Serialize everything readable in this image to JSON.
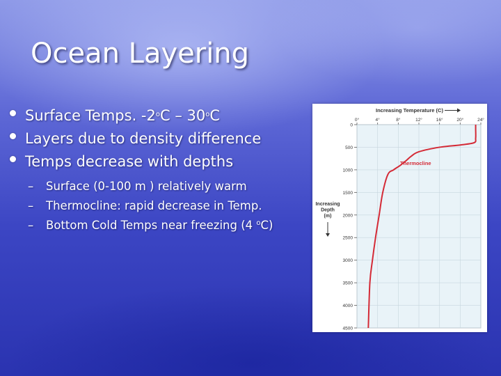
{
  "slide": {
    "title": "Ocean Layering",
    "bullets": [
      {
        "pre": "Surface Temps. -2",
        "sup1": "o",
        "mid": "C – 30",
        "sup2": "o",
        "post": "C"
      },
      {
        "text": "Layers due to density difference"
      },
      {
        "text": "Temps decrease with depths"
      }
    ],
    "subbullets": [
      {
        "dash": "–",
        "text": "Surface (0-100 m ) relatively warm"
      },
      {
        "dash": "–",
        "text": "Thermocline: rapid decrease in Temp."
      },
      {
        "dash": "–",
        "pre": "Bottom Cold Temps near freezing (4 ",
        "sup": "o",
        "post": "C)"
      }
    ]
  },
  "chart_data": {
    "type": "line",
    "title": "Increasing Temperature (C)",
    "ylabel_lines": [
      "Increasing",
      "Depth",
      "(m)"
    ],
    "annotation": "Thermocline",
    "x_ticks": [
      "0°",
      "4°",
      "8°",
      "12°",
      "16°",
      "20°",
      "24°"
    ],
    "x_tick_values": [
      0,
      4,
      8,
      12,
      16,
      20,
      24
    ],
    "y_ticks": [
      "0",
      "500",
      "1000",
      "1500",
      "2000",
      "2500",
      "3000",
      "3500",
      "4000",
      "4500"
    ],
    "y_tick_values": [
      0,
      500,
      1000,
      1500,
      2000,
      2500,
      3000,
      3500,
      4000,
      4500
    ],
    "xlim": [
      0,
      24
    ],
    "ylim": [
      0,
      4500
    ],
    "line_color": "#d42a36",
    "x": [
      23,
      23,
      23,
      22.7,
      20,
      16,
      12,
      10.5,
      9.5,
      8.4,
      7.1,
      6,
      5,
      4.3,
      3.6,
      3.0,
      2.5,
      2.2
    ],
    "y": [
      0,
      100,
      300,
      400,
      450,
      500,
      600,
      700,
      800,
      900,
      1000,
      1100,
      1500,
      2000,
      2500,
      3000,
      3500,
      4500
    ]
  }
}
